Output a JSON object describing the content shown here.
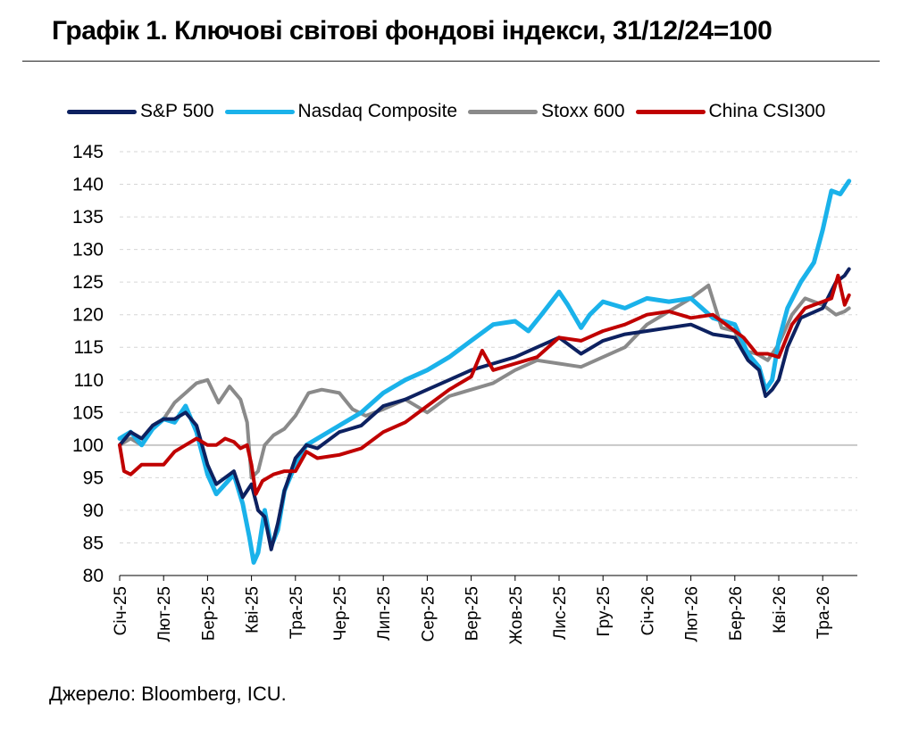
{
  "title": "Графік 1. Ключові світові фондові індекси, 31/12/24=100",
  "source": "Джерело: Bloomberg, ICU.",
  "chart_data": {
    "type": "line",
    "ylim": [
      80,
      145
    ],
    "yticks": [
      80,
      85,
      90,
      95,
      100,
      105,
      110,
      115,
      120,
      125,
      130,
      135,
      140,
      145
    ],
    "xlim": [
      0,
      16.6
    ],
    "x_tick_labels": [
      "Січ-25",
      "Лют-25",
      "Бер-25",
      "Кві-25",
      "Тра-25",
      "Чер-25",
      "Лип-25",
      "Сер-25",
      "Вер-25",
      "Жов-25",
      "Лис-25",
      "Гру-25",
      "Січ-26",
      "Лют-26",
      "Бер-26",
      "Кві-26",
      "Тра-26"
    ],
    "x_tick_positions": [
      0,
      1,
      2,
      3,
      4,
      5,
      6,
      7,
      8,
      9,
      10,
      11,
      12,
      13,
      14,
      15,
      16
    ],
    "grid": "horizontal-dashed",
    "reference_line": 100,
    "legend": "top",
    "series": [
      {
        "name": "S&P 500",
        "color": "#0d2160",
        "x": [
          0,
          0.25,
          0.5,
          0.75,
          1.0,
          1.25,
          1.5,
          1.75,
          2.0,
          2.2,
          2.4,
          2.6,
          2.8,
          3.0,
          3.15,
          3.3,
          3.45,
          3.6,
          3.75,
          4.0,
          4.25,
          4.5,
          5.0,
          5.5,
          6.0,
          6.5,
          7.0,
          7.5,
          8.0,
          8.5,
          9.0,
          9.5,
          10.0,
          10.5,
          11.0,
          11.5,
          12.0,
          12.5,
          13.0,
          13.5,
          14.0,
          14.3,
          14.55,
          14.7,
          14.85,
          15.0,
          15.2,
          15.5,
          16.0,
          16.3,
          16.5,
          16.6
        ],
        "values": [
          100,
          102,
          101,
          103,
          104,
          104,
          105,
          103,
          97,
          94,
          95,
          96,
          92,
          94,
          90,
          89,
          84,
          88,
          93,
          98,
          100,
          99.5,
          102,
          103,
          106,
          107,
          108.5,
          110,
          111.5,
          112.5,
          113.5,
          115,
          116.5,
          114,
          116,
          117,
          117.5,
          118,
          118.5,
          117,
          116.5,
          113,
          111.5,
          107.5,
          108.5,
          110,
          115,
          119.5,
          121,
          125,
          126,
          127
        ]
      },
      {
        "name": "Nasdaq Composite",
        "color": "#1ab2ea",
        "x": [
          0,
          0.25,
          0.5,
          0.75,
          1.0,
          1.25,
          1.5,
          1.75,
          2.0,
          2.2,
          2.4,
          2.6,
          2.8,
          2.95,
          3.05,
          3.15,
          3.3,
          3.45,
          3.6,
          3.75,
          4.0,
          4.25,
          4.5,
          5.0,
          5.5,
          6.0,
          6.5,
          7.0,
          7.5,
          8.0,
          8.5,
          9.0,
          9.3,
          9.6,
          10.0,
          10.2,
          10.5,
          10.7,
          11.0,
          11.5,
          12.0,
          12.5,
          13.0,
          13.5,
          14.0,
          14.3,
          14.55,
          14.7,
          14.85,
          15.0,
          15.2,
          15.5,
          15.8,
          16.0,
          16.2,
          16.4,
          16.6
        ],
        "values": [
          101,
          102,
          100,
          102.5,
          104,
          103.5,
          106,
          102,
          95.5,
          92.5,
          94,
          95.5,
          91,
          86,
          82,
          83.5,
          90,
          84.5,
          87,
          93,
          97,
          100,
          101,
          103,
          105,
          108,
          110,
          111.5,
          113.5,
          116,
          118.5,
          119,
          117.5,
          120,
          123.5,
          121.5,
          118,
          120,
          122,
          121,
          122.5,
          122,
          122.5,
          119.5,
          118.5,
          114,
          112,
          108.5,
          110,
          116,
          121,
          125,
          128,
          133,
          139,
          138.5,
          140.5
        ]
      },
      {
        "name": "Stoxx 600",
        "color": "#8a8a8a",
        "x": [
          0,
          0.25,
          0.5,
          0.75,
          1.0,
          1.25,
          1.5,
          1.75,
          2.0,
          2.25,
          2.5,
          2.75,
          2.9,
          3.0,
          3.15,
          3.3,
          3.5,
          3.75,
          4.0,
          4.3,
          4.6,
          5.0,
          5.3,
          5.6,
          6.0,
          6.5,
          7.0,
          7.5,
          8.0,
          8.5,
          9.0,
          9.5,
          10.0,
          10.5,
          11.0,
          11.5,
          12.0,
          12.5,
          13.0,
          13.4,
          13.7,
          14.0,
          14.2,
          14.5,
          14.75,
          15.0,
          15.3,
          15.6,
          16.0,
          16.3,
          16.5,
          16.6
        ],
        "values": [
          100,
          101,
          100,
          103,
          104,
          106.5,
          108,
          109.5,
          110,
          106.5,
          109,
          107,
          103.5,
          95,
          96,
          100,
          101.5,
          102.5,
          104.5,
          108,
          108.5,
          108,
          105.5,
          104.5,
          105.5,
          107,
          105,
          107.5,
          108.5,
          109.5,
          111.5,
          113,
          112.5,
          112,
          113.5,
          115,
          118.5,
          120.5,
          122.5,
          124.5,
          118,
          117.5,
          114.5,
          114,
          113,
          115.5,
          120,
          122.5,
          121.5,
          120,
          120.5,
          121
        ]
      },
      {
        "name": "China CSI300",
        "color": "#c00000",
        "x": [
          0,
          0.1,
          0.25,
          0.5,
          0.75,
          1.0,
          1.25,
          1.5,
          1.75,
          2.0,
          2.2,
          2.4,
          2.6,
          2.75,
          2.9,
          3.0,
          3.1,
          3.25,
          3.5,
          3.75,
          4.0,
          4.25,
          4.5,
          5.0,
          5.5,
          6.0,
          6.5,
          7.0,
          7.5,
          8.0,
          8.25,
          8.5,
          9.0,
          9.5,
          10.0,
          10.5,
          11.0,
          11.5,
          12.0,
          12.5,
          13.0,
          13.5,
          14.0,
          14.2,
          14.5,
          14.75,
          15.0,
          15.3,
          15.6,
          16.0,
          16.2,
          16.35,
          16.5,
          16.6
        ],
        "values": [
          100,
          96,
          95.5,
          97,
          97,
          97,
          99,
          100,
          101,
          100,
          100,
          101,
          100.5,
          99.5,
          100,
          97,
          92.5,
          94.5,
          95.5,
          96,
          96,
          99,
          98,
          98.5,
          99.5,
          102,
          103.5,
          106,
          108.5,
          110.5,
          114.5,
          111.5,
          112.5,
          113.5,
          116.5,
          116,
          117.5,
          118.5,
          120,
          120.5,
          119.5,
          120,
          117.5,
          116.5,
          114,
          114,
          113.5,
          118.5,
          121,
          122,
          122.5,
          126,
          121.5,
          123
        ]
      }
    ]
  }
}
